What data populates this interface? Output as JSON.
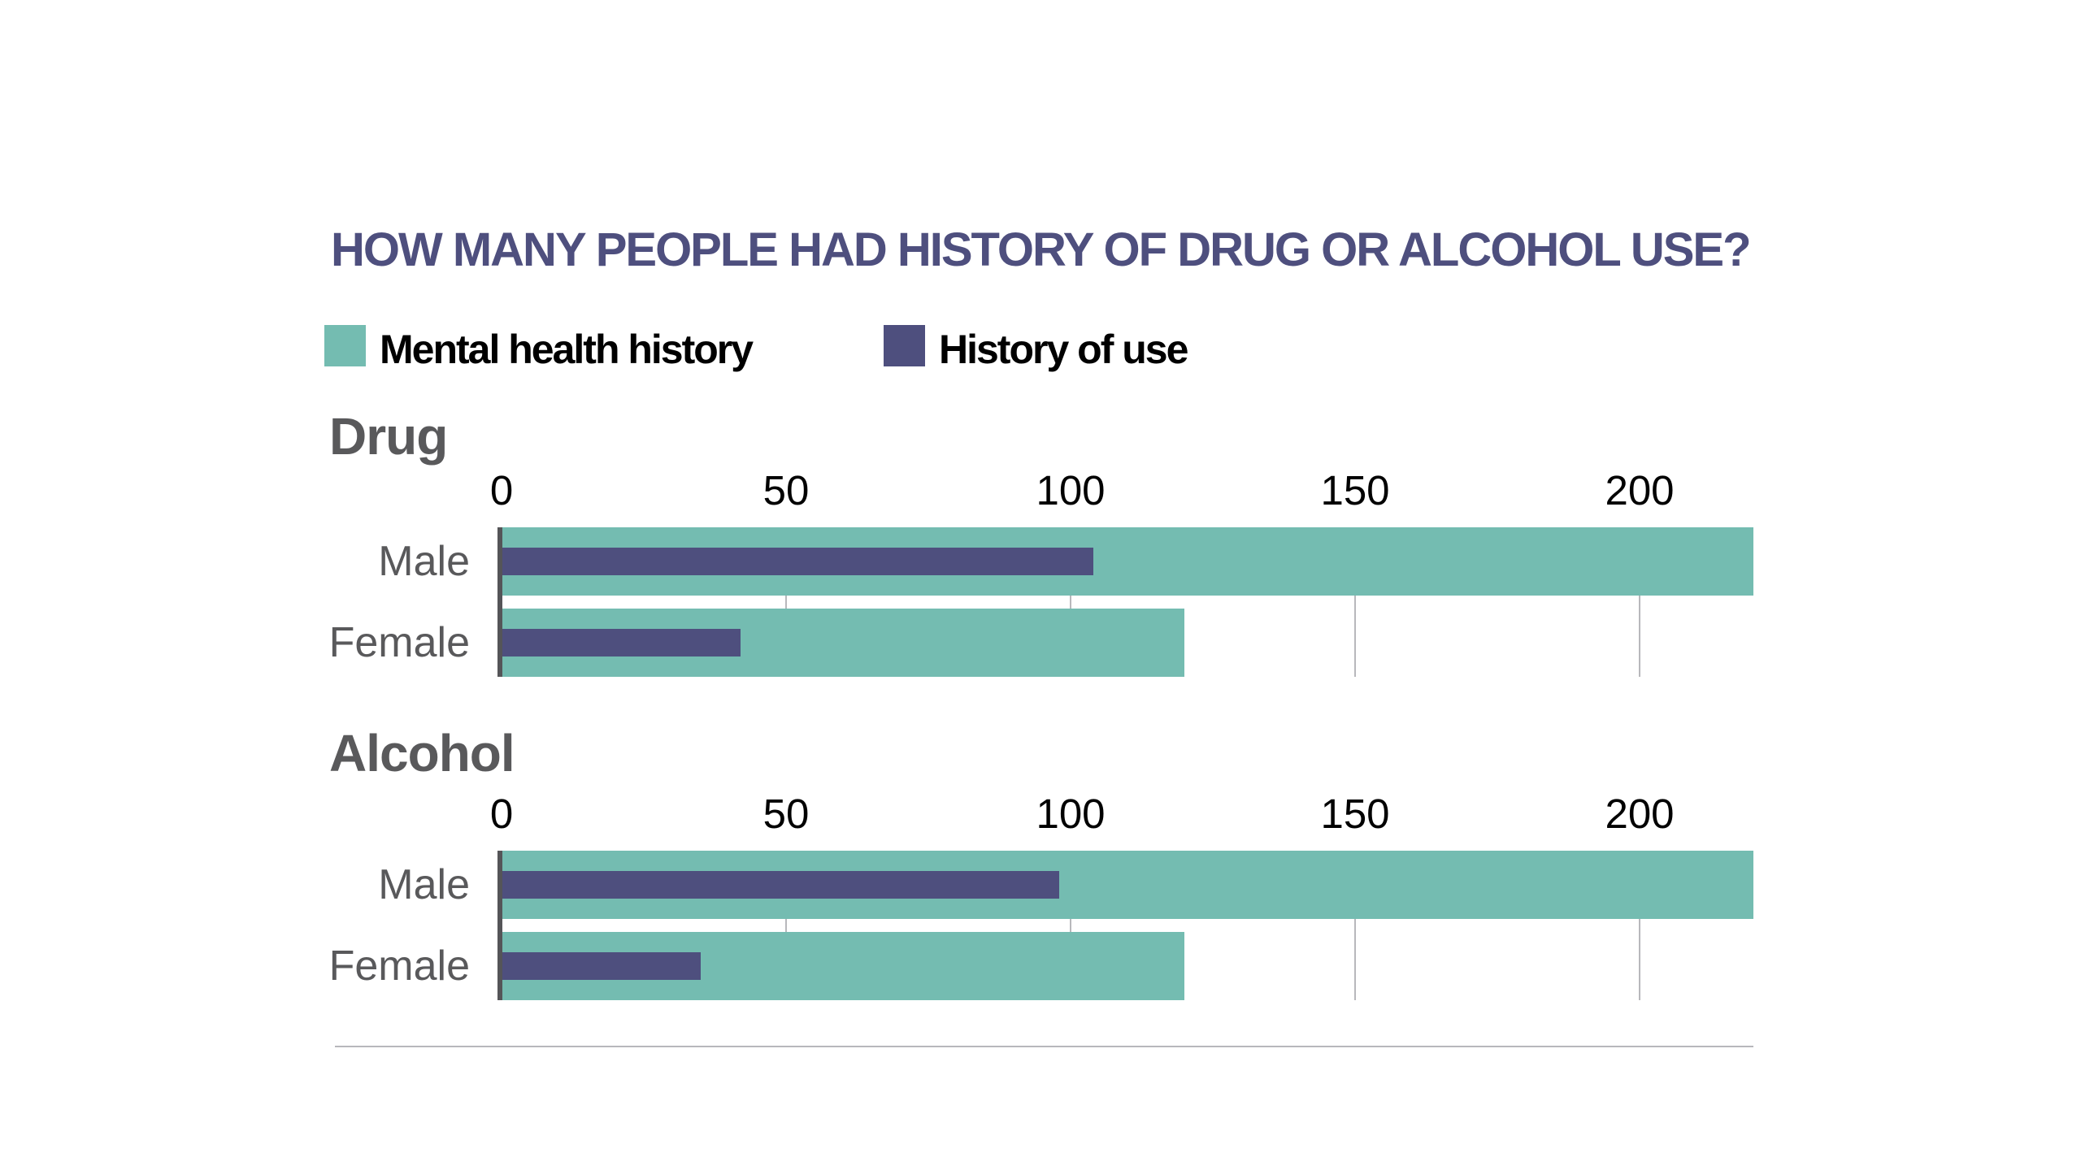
{
  "title": "HOW MANY PEOPLE HAD HISTORY OF DRUG OR ALCOHOL USE?",
  "legend": [
    {
      "label": "Mental health history",
      "color": "#74bcb1"
    },
    {
      "label": "History of use",
      "color": "#4e4f7e"
    }
  ],
  "chart_data": [
    {
      "type": "bar",
      "orientation": "horizontal",
      "title": "Drug",
      "categories": [
        "Male",
        "Female"
      ],
      "series": [
        {
          "name": "Mental health history",
          "values": [
            220,
            120
          ],
          "color": "#74bcb1"
        },
        {
          "name": "History of use",
          "values": [
            104,
            42
          ],
          "color": "#4e4f7e"
        }
      ],
      "xlim": [
        0,
        220
      ],
      "xticks": [
        0,
        50,
        100,
        150,
        200
      ],
      "xtick_labels": [
        "0",
        "50",
        "100",
        "150",
        "200"
      ],
      "xaxis_position": "top",
      "grid": true,
      "legend_position": "top-left"
    },
    {
      "type": "bar",
      "orientation": "horizontal",
      "title": "Alcohol",
      "categories": [
        "Male",
        "Female"
      ],
      "series": [
        {
          "name": "Mental health history",
          "values": [
            220,
            120
          ],
          "color": "#74bcb1"
        },
        {
          "name": "History of use",
          "values": [
            98,
            35
          ],
          "color": "#4e4f7e"
        }
      ],
      "xlim": [
        0,
        220
      ],
      "xticks": [
        0,
        50,
        100,
        150,
        200
      ],
      "xtick_labels": [
        "0",
        "50",
        "100",
        "150",
        "200"
      ],
      "xaxis_position": "top",
      "grid": true,
      "legend_position": "top-left"
    }
  ]
}
